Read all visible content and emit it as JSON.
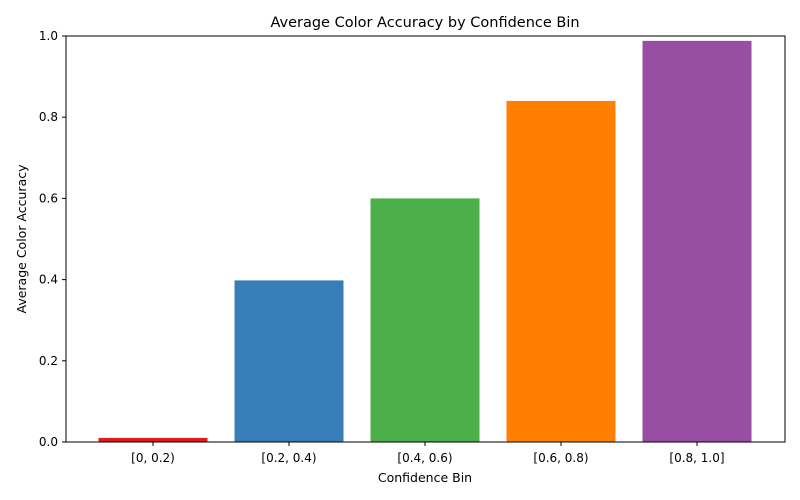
{
  "chart_data": {
    "type": "bar",
    "title": "Average Color Accuracy by Confidence Bin",
    "xlabel": "Confidence Bin",
    "ylabel": "Average Color Accuracy",
    "categories": [
      "[0, 0.2)",
      "[0.2, 0.4)",
      "[0.4, 0.6)",
      "[0.6, 0.8)",
      "[0.8, 1.0]"
    ],
    "values": [
      0.01,
      0.398,
      0.6,
      0.84,
      0.988
    ],
    "colors": [
      "#e41a1c",
      "#377eb8",
      "#4daf4a",
      "#ff7f00",
      "#984ea3"
    ],
    "ylim": [
      0,
      1.0
    ],
    "yticks": [
      "0.0",
      "0.2",
      "0.4",
      "0.6",
      "0.8",
      "1.0"
    ],
    "grid": false,
    "legend": "none"
  }
}
